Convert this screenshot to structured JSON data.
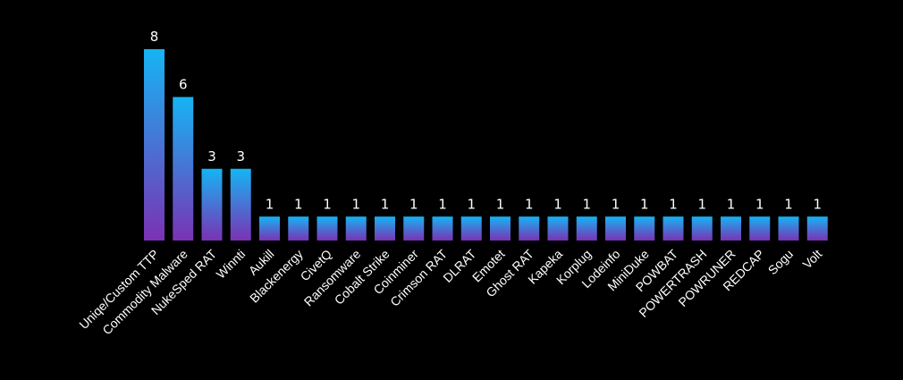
{
  "chart_data": {
    "type": "bar",
    "categories": [
      "Uniqe/Custom TTP",
      "Commodity Malware",
      "NukeSped RAT",
      "Winnti",
      "Aukill",
      "Blackenergy",
      "CivetQ",
      "Ransomware",
      "Cobalt Strike",
      "Coinminer",
      "Crimson RAT",
      "DLRAT",
      "Emotet",
      "Ghost RAT",
      "Kapeka",
      "Korplug",
      "Lodeinfo",
      "MiniDuke",
      "POWBAT",
      "POWERTRASH",
      "POWRUNER",
      "REDCAP",
      "Sogu",
      "Volt"
    ],
    "values": [
      8,
      6,
      3,
      3,
      1,
      1,
      1,
      1,
      1,
      1,
      1,
      1,
      1,
      1,
      1,
      1,
      1,
      1,
      1,
      1,
      1,
      1,
      1,
      1
    ],
    "ylim": [
      0,
      8
    ],
    "grid": false,
    "legend": "none",
    "colors": {
      "background": "#000000",
      "bar_top": "#16b4f4",
      "bar_bottom": "#7a32b4",
      "text": "#ffffff"
    }
  }
}
